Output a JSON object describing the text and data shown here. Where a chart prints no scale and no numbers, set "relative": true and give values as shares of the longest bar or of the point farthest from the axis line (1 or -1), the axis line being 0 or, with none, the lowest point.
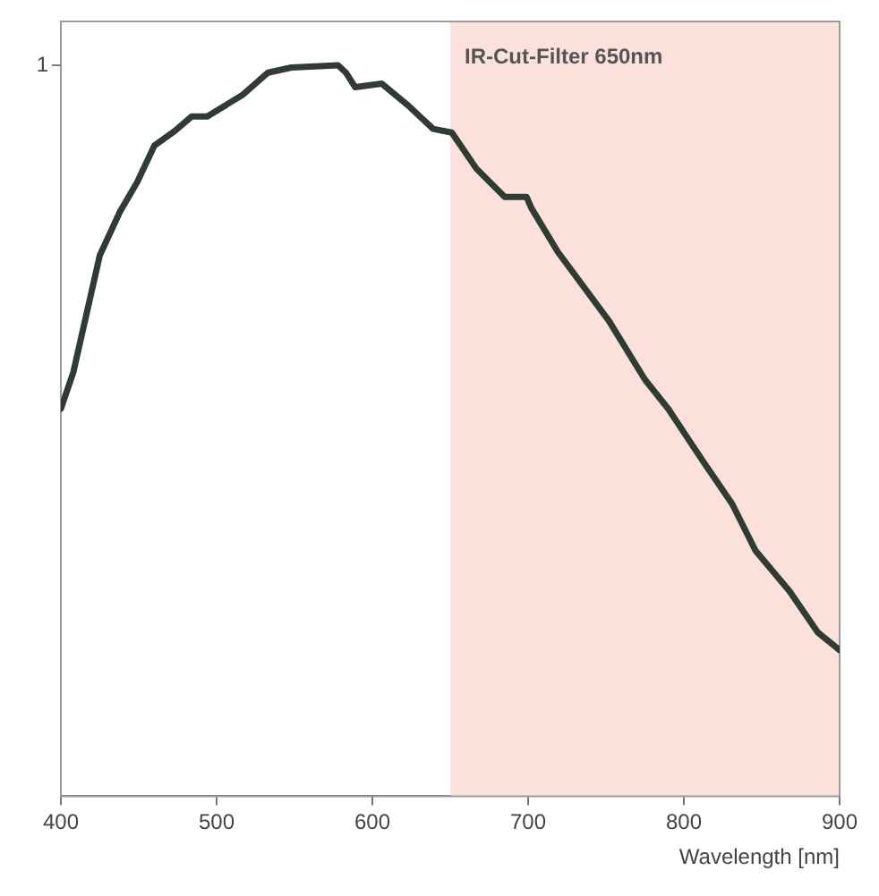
{
  "chart_data": {
    "type": "line",
    "xlabel": "Wavelength [nm]",
    "relative": true,
    "x": [
      400,
      408,
      425,
      438,
      449,
      460,
      473,
      484,
      494,
      517,
      533,
      548,
      578,
      583,
      589,
      606,
      623,
      639,
      651,
      667,
      685,
      699,
      702,
      719,
      752,
      775,
      790,
      813,
      831,
      846,
      868,
      886,
      900
    ],
    "series": [
      {
        "color": "#2f3b33",
        "values": [
          0.53,
          0.58,
          0.74,
          0.8,
          0.84,
          0.89,
          0.91,
          0.93,
          0.93,
          0.96,
          0.99,
          0.997,
          1,
          0.99,
          0.97,
          0.975,
          0.945,
          0.913,
          0.908,
          0.858,
          0.82,
          0.82,
          0.805,
          0.745,
          0.65,
          0.57,
          0.53,
          0.456,
          0.4,
          0.336,
          0.28,
          0.224,
          0.2
        ]
      }
    ],
    "xlim": [
      400,
      900
    ],
    "xticks": [
      400,
      500,
      600,
      700,
      800,
      900
    ],
    "bands": [
      {
        "axis": "x",
        "from": 650,
        "to": 900,
        "label": "IR-Cut-Filter 650nm",
        "color": "#fbe0dc"
      }
    ],
    "annotations": [
      "1"
    ],
    "grid": false,
    "legend": false,
    "marker": "none",
    "line_style": "solid"
  }
}
